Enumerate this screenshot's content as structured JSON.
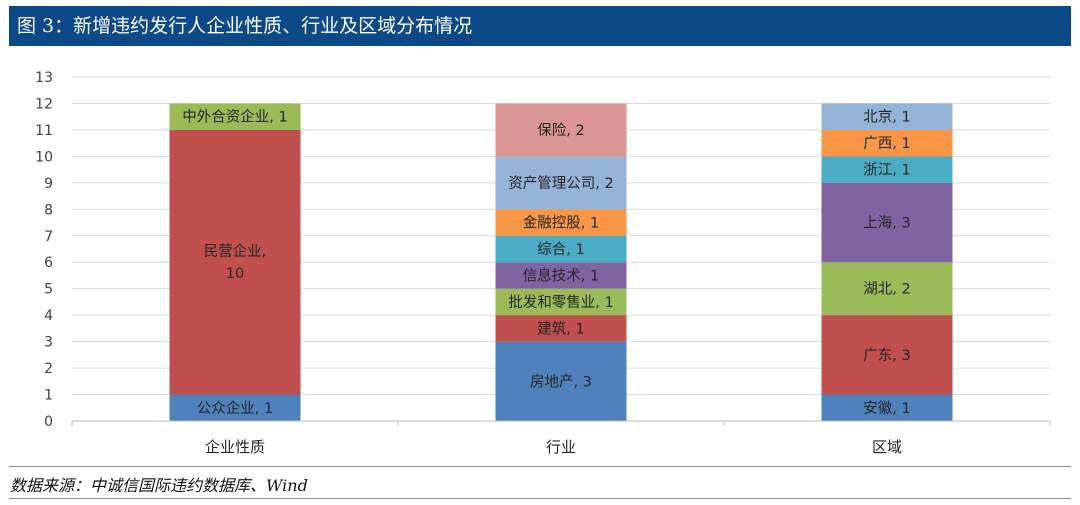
{
  "figure_title": "图 3：新增违约发行人企业性质、行业及区域分布情况",
  "source": "数据来源：中诚信国际违约数据库、Wind",
  "colors": {
    "header_bg": "#0b4a86",
    "blue": "#4f81bd",
    "red": "#c0504d",
    "green": "#9bbb59",
    "purple": "#8064a2",
    "teal": "#4bacc6",
    "orange": "#f79646",
    "lightblue": "#95b3d7",
    "pink": "#d99694"
  },
  "chart_data": {
    "type": "bar",
    "stacked": true,
    "categories": [
      "企业性质",
      "行业",
      "区域"
    ],
    "ylim": [
      0,
      13
    ],
    "y_ticks": [
      "0",
      "1",
      "2",
      "3",
      "4",
      "5",
      "6",
      "7",
      "8",
      "9",
      "10",
      "11",
      "12",
      "13"
    ],
    "grid": true,
    "stacks": [
      {
        "category": "企业性质",
        "segments": [
          {
            "name": "公众企业",
            "value": 1,
            "color": "#4f81bd",
            "label": "公众企业, 1"
          },
          {
            "name": "民营企业",
            "value": 10,
            "color": "#c0504d",
            "label": "民营企业,",
            "label2": "10"
          },
          {
            "name": "中外合资企业",
            "value": 1,
            "color": "#9bbb59",
            "label": "中外合资企业, 1"
          }
        ]
      },
      {
        "category": "行业",
        "segments": [
          {
            "name": "房地产",
            "value": 3,
            "color": "#4f81bd",
            "label": "房地产, 3"
          },
          {
            "name": "建筑",
            "value": 1,
            "color": "#c0504d",
            "label": "建筑, 1"
          },
          {
            "name": "批发和零售业",
            "value": 1,
            "color": "#9bbb59",
            "label": "批发和零售业, 1"
          },
          {
            "name": "信息技术",
            "value": 1,
            "color": "#8064a2",
            "label": "信息技术, 1"
          },
          {
            "name": "综合",
            "value": 1,
            "color": "#4bacc6",
            "label": "综合, 1"
          },
          {
            "name": "金融控股",
            "value": 1,
            "color": "#f79646",
            "label": "金融控股, 1"
          },
          {
            "name": "资产管理公司",
            "value": 2,
            "color": "#95b3d7",
            "label": "资产管理公司, 2"
          },
          {
            "name": "保险",
            "value": 2,
            "color": "#d99694",
            "label": "保险, 2"
          }
        ]
      },
      {
        "category": "区域",
        "segments": [
          {
            "name": "安徽",
            "value": 1,
            "color": "#4f81bd",
            "label": "安徽, 1"
          },
          {
            "name": "广东",
            "value": 3,
            "color": "#c0504d",
            "label": "广东, 3"
          },
          {
            "name": "湖北",
            "value": 2,
            "color": "#9bbb59",
            "label": "湖北, 2"
          },
          {
            "name": "上海",
            "value": 3,
            "color": "#8064a2",
            "label": "上海, 3"
          },
          {
            "name": "浙江",
            "value": 1,
            "color": "#4bacc6",
            "label": "浙江, 1"
          },
          {
            "name": "广西",
            "value": 1,
            "color": "#f79646",
            "label": "广西, 1"
          },
          {
            "name": "北京",
            "value": 1,
            "color": "#95b3d7",
            "label": "北京, 1"
          }
        ]
      }
    ]
  }
}
